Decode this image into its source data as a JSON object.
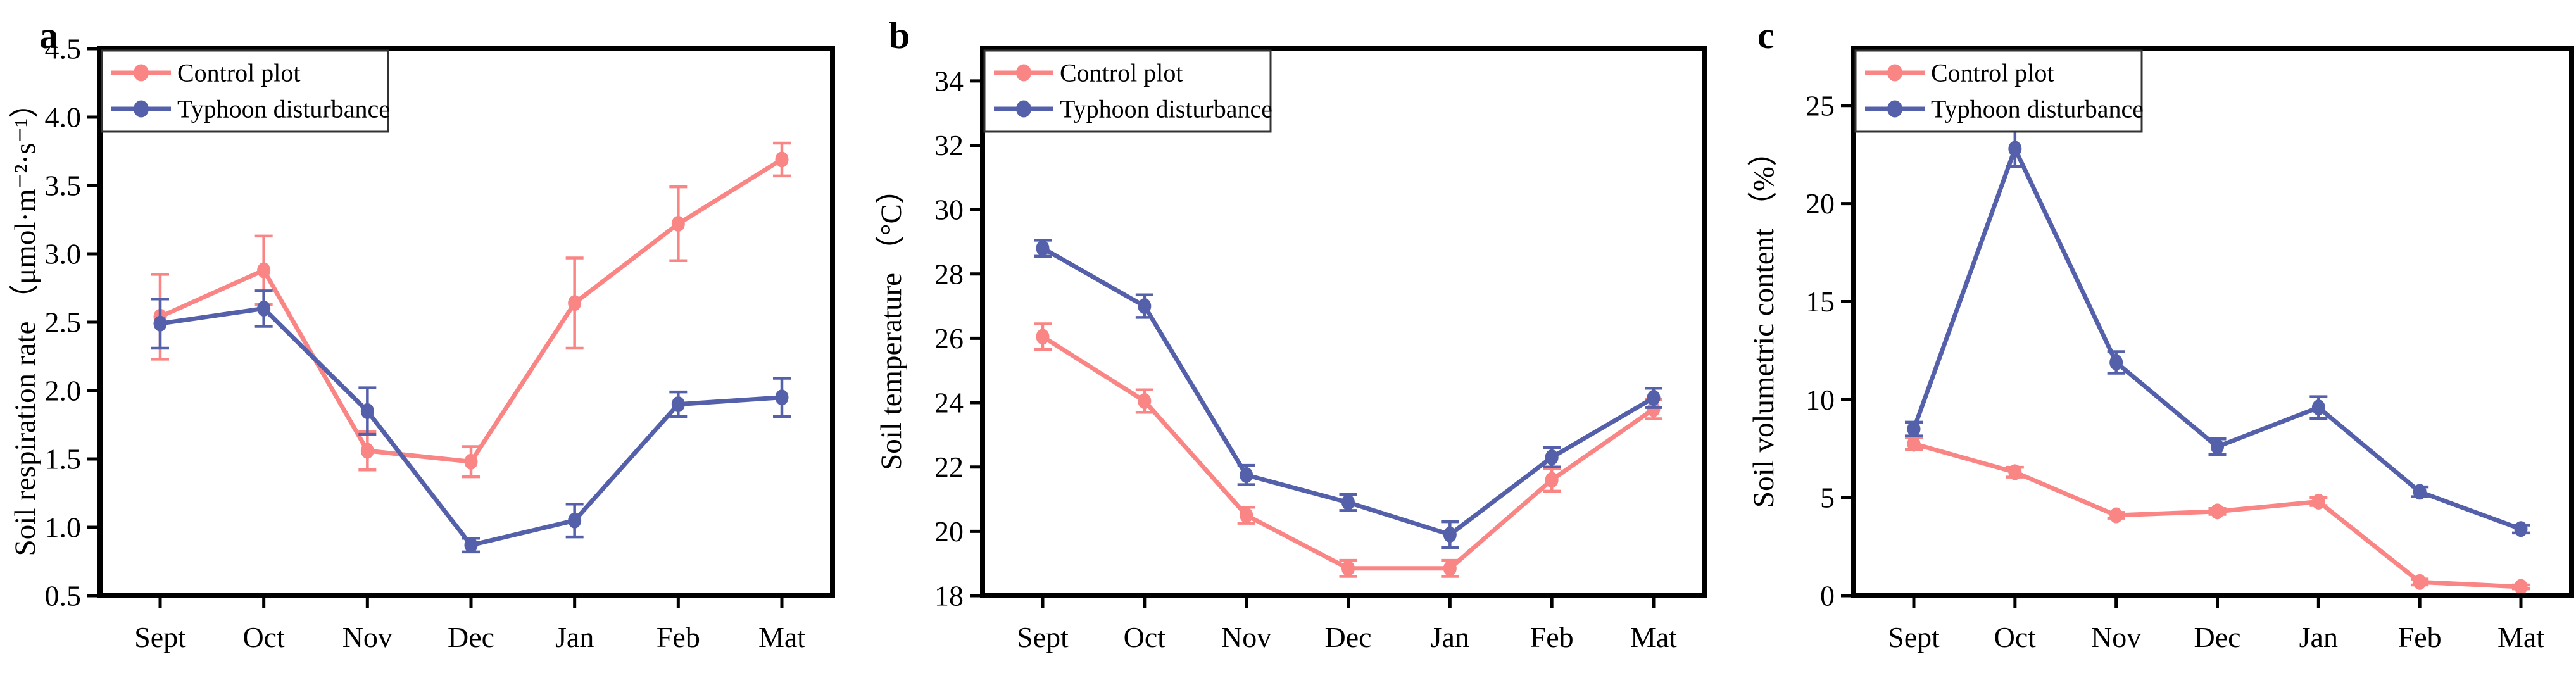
{
  "figure": {
    "colors": {
      "control": "#F98585",
      "typhoon": "#5560AB",
      "axis": "#000000",
      "background": "#FFFFFF"
    },
    "legend_labels": [
      "Control plot",
      "Typhoon disturbance"
    ]
  },
  "chart_data": [
    {
      "type": "line",
      "panel_label": "a",
      "title": "",
      "xlabel": "",
      "ylabel": "Soil respiration rate （μmol·m⁻²·s⁻¹）",
      "ylim": [
        0.5,
        4.5
      ],
      "yticks": [
        "0.5",
        "1.0",
        "1.5",
        "2.0",
        "2.5",
        "3.0",
        "3.5",
        "4.0",
        "4.5"
      ],
      "categories": [
        "Sept",
        "Oct",
        "Nov",
        "Dec",
        "Jan",
        "Feb",
        "Mat"
      ],
      "grid": false,
      "legend_position": "top-left",
      "error_bars": true,
      "series": [
        {
          "name": "Control plot",
          "color_key": "control",
          "values": [
            2.54,
            2.88,
            1.56,
            1.48,
            2.64,
            3.22,
            3.69
          ],
          "errors": [
            0.31,
            0.25,
            0.14,
            0.11,
            0.33,
            0.27,
            0.12
          ]
        },
        {
          "name": "Typhoon disturbance",
          "color_key": "typhoon",
          "values": [
            2.49,
            2.6,
            1.85,
            0.87,
            1.05,
            1.9,
            1.95
          ],
          "errors": [
            0.18,
            0.13,
            0.17,
            0.05,
            0.12,
            0.09,
            0.14
          ]
        }
      ]
    },
    {
      "type": "line",
      "panel_label": "b",
      "title": "",
      "xlabel": "",
      "ylabel": "Soil temperature （°C）",
      "ylim": [
        18,
        35
      ],
      "yticks": [
        "18",
        "20",
        "22",
        "24",
        "26",
        "28",
        "30",
        "32",
        "34"
      ],
      "categories": [
        "Sept",
        "Oct",
        "Nov",
        "Dec",
        "Jan",
        "Feb",
        "Mat"
      ],
      "grid": false,
      "legend_position": "top-left",
      "error_bars": true,
      "series": [
        {
          "name": "Control plot",
          "color_key": "control",
          "values": [
            26.05,
            24.05,
            20.5,
            18.85,
            18.85,
            21.6,
            23.8
          ],
          "errors": [
            0.4,
            0.35,
            0.25,
            0.25,
            0.25,
            0.35,
            0.3
          ]
        },
        {
          "name": "Typhoon disturbance",
          "color_key": "typhoon",
          "values": [
            28.8,
            27.0,
            21.75,
            20.9,
            19.9,
            22.3,
            24.15
          ],
          "errors": [
            0.25,
            0.35,
            0.3,
            0.25,
            0.4,
            0.3,
            0.3
          ]
        }
      ]
    },
    {
      "type": "line",
      "panel_label": "c",
      "title": "",
      "xlabel": "",
      "ylabel": "Soil volumetric content （%）",
      "ylim": [
        0,
        27.9
      ],
      "yticks": [
        "0",
        "5",
        "10",
        "15",
        "20",
        "25"
      ],
      "categories": [
        "Sept",
        "Oct",
        "Nov",
        "Dec",
        "Jan",
        "Feb",
        "Mat"
      ],
      "grid": false,
      "legend_position": "top-left",
      "error_bars": true,
      "series": [
        {
          "name": "Control plot",
          "color_key": "control",
          "values": [
            7.75,
            6.3,
            4.1,
            4.3,
            4.8,
            0.7,
            0.45
          ],
          "errors": [
            0.3,
            0.25,
            0.15,
            0.15,
            0.2,
            0.15,
            0.1
          ]
        },
        {
          "name": "Typhoon disturbance",
          "color_key": "typhoon",
          "values": [
            8.5,
            22.8,
            11.9,
            7.6,
            9.6,
            5.3,
            3.4
          ],
          "errors": [
            0.35,
            0.9,
            0.55,
            0.4,
            0.55,
            0.25,
            0.2
          ]
        }
      ]
    }
  ]
}
